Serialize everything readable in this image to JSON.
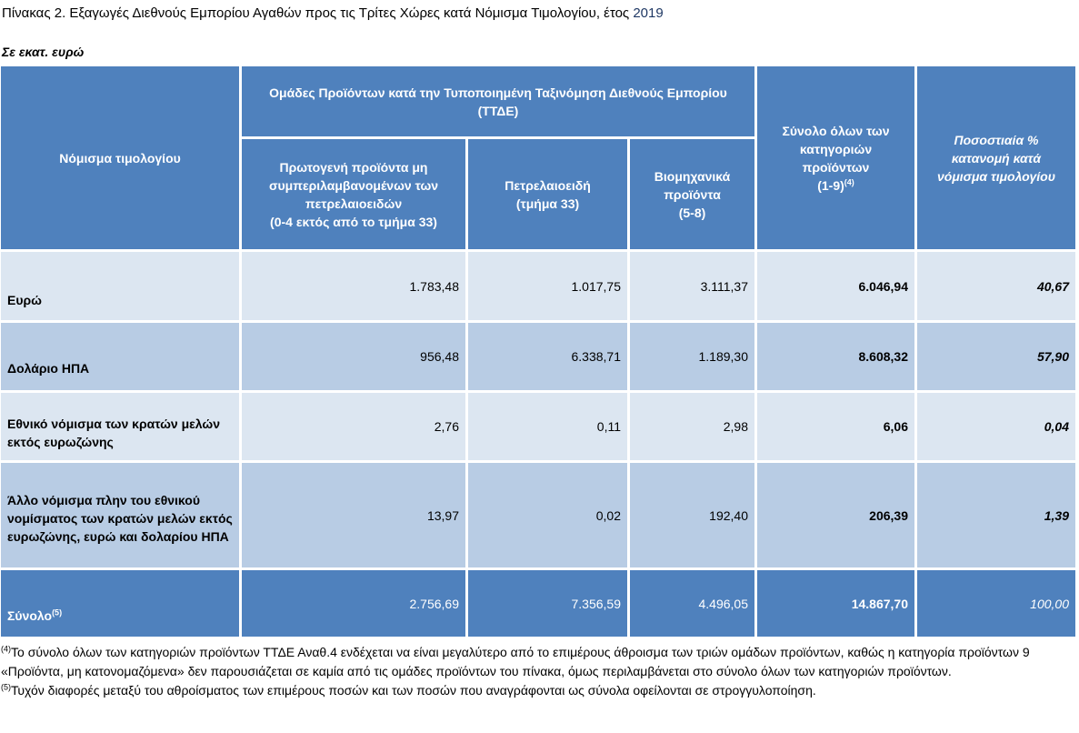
{
  "title": {
    "text": "Πίνακας 2. Εξαγωγές Διεθνούς Εμπορίου Αγαθών προς τις Τρίτες Χώρες κατά Νόμισμα Τιμολογίου, έτος ",
    "year": "2019"
  },
  "units": "Σε εκατ. ευρώ",
  "header": {
    "currency_col": "Νόμισμα τιμολογίου",
    "group_header": "Ομάδες Προϊόντων κατά την Τυποποιημένη Ταξινόμηση Διεθνούς Εμπορίου (ΤΤΔΕ)",
    "primary": {
      "line1": "Πρωτογενή προϊόντα μη",
      "line2": "συμπεριλαμβανομένων των",
      "line3": "πετρελαιοειδών",
      "line4": "(0-4 εκτός από το τμήμα 33)"
    },
    "petroleum": {
      "line1": "Πετρελαιοειδή",
      "line2": "(τμήμα 33)"
    },
    "industrial": {
      "line1": "Βιομηχανικά",
      "line2": "προϊόντα",
      "line3": "(5-8)"
    },
    "total": {
      "line1": "Σύνολο όλων των",
      "line2": "κατηγοριών",
      "line3": "προϊόντων",
      "line4": "(1-9)",
      "sup": "(4)"
    },
    "share": {
      "line1": "Ποσοστιαία %",
      "line2": "κατανομή κατά",
      "line3": "νόμισμα τιμολογίου"
    }
  },
  "rows": [
    {
      "label": "Ευρώ",
      "primary": "1.783,48",
      "petroleum": "1.017,75",
      "industrial": "3.111,37",
      "total": "6.046,94",
      "share": "40,67"
    },
    {
      "label": "Δολάριο ΗΠΑ",
      "primary": "956,48",
      "petroleum": "6.338,71",
      "industrial": "1.189,30",
      "total": "8.608,32",
      "share": "57,90"
    },
    {
      "label": "Εθνικό νόμισμα των κρατών μελών  εκτός ευρωζώνης",
      "primary": "2,76",
      "petroleum": "0,11",
      "industrial": "2,98",
      "total": "6,06",
      "share": "0,04"
    },
    {
      "label": "Άλλο νόμισμα πλην του εθνικού νομίσματος των κρατών μελών εκτός ευρωζώνης, ευρώ και δολαρίου ΗΠΑ",
      "primary": "13,97",
      "petroleum": "0,02",
      "industrial": "192,40",
      "total": "206,39",
      "share": "1,39"
    }
  ],
  "total_row": {
    "label": "Σύνολο",
    "sup": "(5)",
    "primary": "2.756,69",
    "petroleum": "7.356,59",
    "industrial": "4.496,05",
    "total": "14.867,70",
    "share": "100,00"
  },
  "notes": {
    "note4_mark": "(4)",
    "note4": "Το σύνολο όλων των κατηγοριών προϊόντων ΤΤΔΕ Αναθ.4 ενδέχεται να είναι μεγαλύτερο από το επιμέρους άθροισμα των τριών ομάδων προϊόντων, καθώς η κατηγορία προϊόντων 9 «Προϊόντα, μη κατονομαζόμενα» δεν παρουσιάζεται σε καμία από τις ομάδες προϊόντων του πίνακα, όμως περιλαμβάνεται στο σύνολο όλων των κατηγοριών προϊόντων.",
    "note5_mark": "(5)",
    "note5": "Τυχόν διαφορές μεταξύ του αθροίσματος των επιμέρους ποσών και των ποσών που αναγράφονται ως σύνολα οφείλονται σε στρογγυλοποίηση."
  }
}
